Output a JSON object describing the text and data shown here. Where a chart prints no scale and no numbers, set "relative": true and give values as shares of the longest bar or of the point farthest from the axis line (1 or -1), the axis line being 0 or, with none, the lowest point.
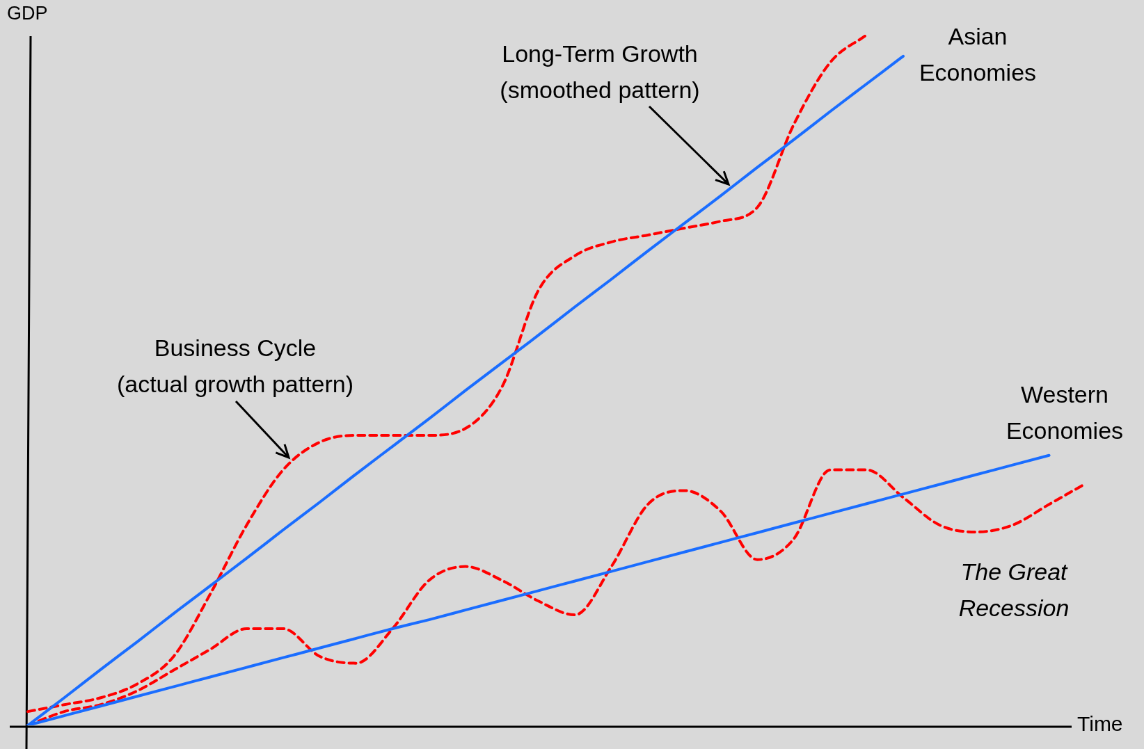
{
  "chart_data": {
    "type": "line",
    "relative": true,
    "xlabel": "Time",
    "ylabel": "GDP",
    "categories": [
      null,
      null,
      null,
      null,
      null,
      null,
      null,
      null,
      null,
      null,
      null,
      null,
      null,
      null,
      null,
      null,
      null,
      null,
      null,
      null,
      null,
      null,
      null,
      null,
      null,
      null,
      null,
      null,
      null,
      null
    ],
    "series": [
      {
        "color": "#1a6dff",
        "line_style": "solid",
        "values": [
          0,
          0.04,
          0.081,
          0.121,
          0.162,
          0.202,
          0.242,
          0.283,
          0.323,
          0.364,
          0.404,
          0.444,
          0.485,
          0.525,
          0.565,
          0.606,
          0.646,
          0.687,
          0.727,
          0.767,
          0.808,
          0.848,
          0.889,
          0.929,
          0.969,
          null,
          null,
          null,
          null,
          null
        ]
      },
      {
        "color": "#ff0000",
        "line_style": "dashed",
        "values": [
          0.02,
          0.03,
          0.04,
          0.06,
          0.1,
          0.19,
          0.29,
          0.37,
          0.41,
          0.42,
          0.42,
          0.42,
          0.43,
          0.49,
          0.63,
          0.68,
          0.7,
          0.71,
          0.72,
          0.73,
          0.75,
          0.87,
          0.96,
          1,
          null,
          null,
          null,
          null,
          null,
          null
        ]
      },
      {
        "color": "#1a6dff",
        "line_style": "solid",
        "values": [
          0,
          0.014,
          0.028,
          0.042,
          0.056,
          0.07,
          0.084,
          0.098,
          0.112,
          0.126,
          0.14,
          0.153,
          0.167,
          0.181,
          0.195,
          0.209,
          0.223,
          0.237,
          0.251,
          0.265,
          0.279,
          0.293,
          0.307,
          0.321,
          0.335,
          0.349,
          0.363,
          0.377,
          0.391,
          null
        ]
      },
      {
        "color": "#ff0000",
        "line_style": "dashed",
        "values": [
          0,
          0.02,
          0.03,
          0.05,
          0.08,
          0.11,
          0.14,
          0.14,
          0.1,
          0.09,
          0.14,
          0.21,
          0.23,
          0.21,
          0.18,
          0.16,
          0.23,
          0.32,
          0.34,
          0.31,
          0.24,
          0.27,
          0.37,
          0.37,
          0.33,
          0.29,
          0.28,
          0.29,
          0.32,
          0.35
        ]
      }
    ],
    "annotations": [
      "Long-Term  Growth\n(smoothed pattern)",
      "Business Cycle\n(actual growth pattern)",
      "Asian\nEconomies",
      "Western\nEconomies",
      "The Great\nRecession"
    ],
    "legend": false
  }
}
